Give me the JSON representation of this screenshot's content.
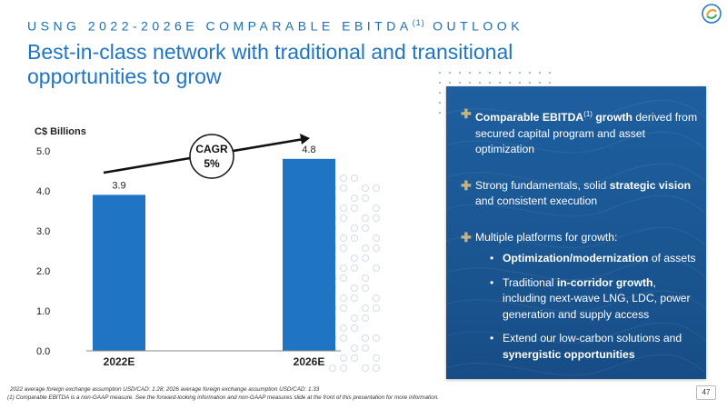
{
  "header": {
    "kicker": "USNG 2022-2026E COMPARABLE EBITDA",
    "kicker_sup": "(1)",
    "kicker_tail": " OUTLOOK",
    "title": "Best-in-class network with traditional and transitional opportunities to grow"
  },
  "chart_data": {
    "type": "bar",
    "ylabel": "C$ Billions",
    "categories": [
      "2022E",
      "2026E"
    ],
    "values": [
      3.9,
      4.8
    ],
    "value_labels": [
      "3.9",
      "4.8"
    ],
    "ylim": [
      0,
      5
    ],
    "yticks": [
      "0.0",
      "1.0",
      "2.0",
      "3.0",
      "4.0",
      "5.0"
    ],
    "grid": false,
    "bar_color": "#1f75c4",
    "annotation": {
      "line1": "CAGR",
      "line2": "5%"
    }
  },
  "panel": {
    "bullet1": {
      "bold": "Comparable EBITDA",
      "sup": "(1)",
      "bold2": " growth",
      "text": " derived from secured capital program and asset optimization"
    },
    "bullet2": {
      "text": "Strong fundamentals, solid ",
      "bold": "strategic vision",
      "text2": " and consistent execution"
    },
    "bullet3": {
      "text": "Multiple platforms for growth:",
      "sub1": {
        "bold": "Optimization/modernization",
        "text": " of assets"
      },
      "sub2": {
        "text": "Traditional ",
        "bold": "in-corridor growth",
        "text2": ", including next-wave LNG, LDC, power generation and supply access"
      },
      "sub3": {
        "text": "Extend our low-carbon solutions and ",
        "bold": "synergistic opportunities"
      }
    },
    "accent": "#c9b47a"
  },
  "footnotes": {
    "line1": "2022 average foreign exchange assumption USD/CAD: 1.28; 2026 average foreign exchange assumption USD/CAD: 1.33",
    "line2": "(1) Comparable EBITDA is a non-GAAP measure. See the forward-looking information and non-GAAP measures slide at the front of this presentation for more information."
  },
  "page_number": "47"
}
